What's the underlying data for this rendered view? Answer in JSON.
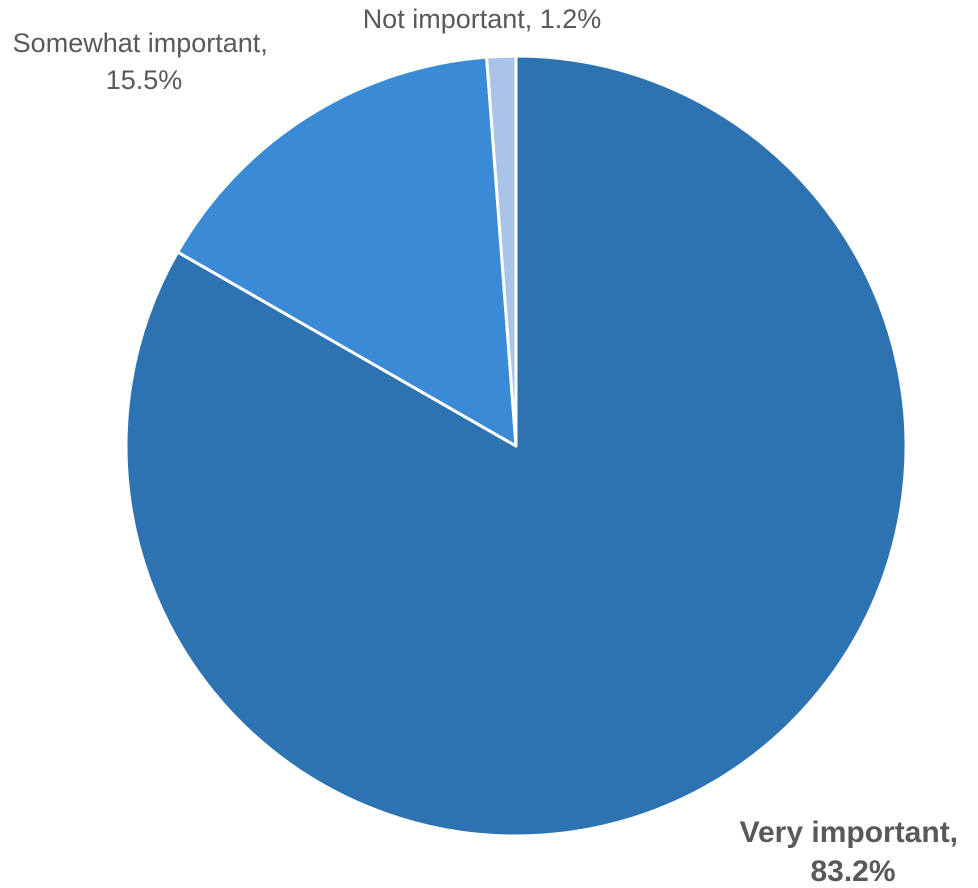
{
  "chart_data": {
    "type": "pie",
    "slices": [
      {
        "name": "Very important",
        "value": 83.2,
        "label_value": "83.2%",
        "color": "#2e73b1",
        "label_emphasis": true
      },
      {
        "name": "Somewhat important",
        "value": 15.5,
        "label_value": "15.5%",
        "color": "#3b8ad6",
        "label_emphasis": false
      },
      {
        "name": "Not important",
        "value": 1.2,
        "label_value": "1.2%",
        "color": "#a9c4e8",
        "label_emphasis": false
      }
    ],
    "start_angle": "12 o'clock",
    "direction": "clockwise",
    "legend": "none"
  }
}
